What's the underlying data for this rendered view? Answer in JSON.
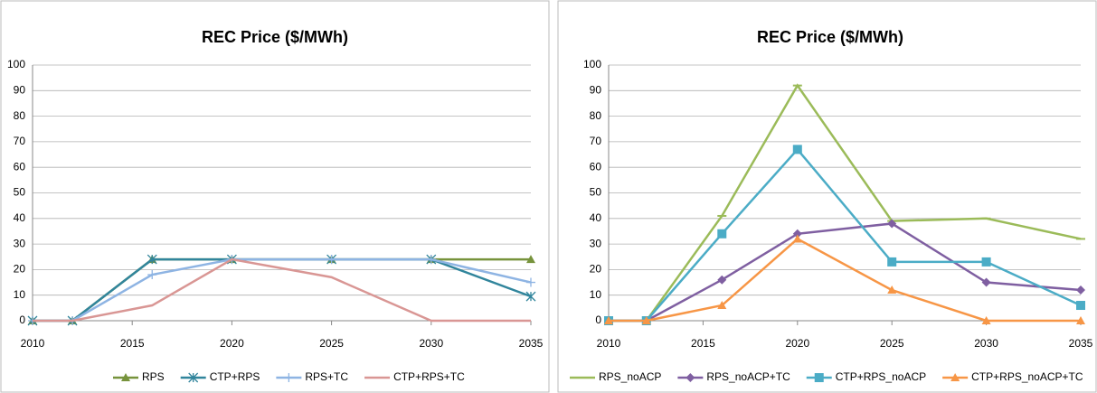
{
  "chart_data": [
    {
      "type": "line",
      "title": "REC Price ($/MWh)",
      "x": [
        2010,
        2012,
        2016,
        2020,
        2025,
        2030,
        2035
      ],
      "xlim": [
        2010,
        2035
      ],
      "xticks": [
        2010,
        2015,
        2020,
        2025,
        2030,
        2035
      ],
      "ylim": [
        0,
        100
      ],
      "yticks": [
        0,
        10,
        20,
        30,
        40,
        50,
        60,
        70,
        80,
        90,
        100
      ],
      "grid": true,
      "legend": "bottom",
      "series": [
        {
          "name": "RPS",
          "color": "#77933c",
          "marker": "triangle",
          "values": [
            0,
            0,
            24,
            24,
            24,
            24,
            24
          ]
        },
        {
          "name": "CTP+RPS",
          "color": "#31859c",
          "marker": "star",
          "values": [
            0,
            0,
            24,
            24,
            24,
            24,
            9.5
          ]
        },
        {
          "name": "RPS+TC",
          "color": "#8eb4e3",
          "marker": "plus",
          "values": [
            0,
            0,
            18,
            24,
            24,
            24,
            15
          ]
        },
        {
          "name": "CTP+RPS+TC",
          "color": "#d99694",
          "marker": "none",
          "values": [
            0,
            0,
            6,
            24,
            17,
            0,
            0
          ]
        }
      ]
    },
    {
      "type": "line",
      "title": "REC Price ($/MWh)",
      "x": [
        2010,
        2012,
        2016,
        2020,
        2025,
        2030,
        2035
      ],
      "xlim": [
        2010,
        2035
      ],
      "xticks": [
        2010,
        2015,
        2020,
        2025,
        2030,
        2035
      ],
      "ylim": [
        0,
        100
      ],
      "yticks": [
        0,
        10,
        20,
        30,
        40,
        50,
        60,
        70,
        80,
        90,
        100
      ],
      "grid": true,
      "legend": "bottom",
      "series": [
        {
          "name": "RPS_noACP",
          "color": "#9bbb59",
          "marker": "dash",
          "values": [
            0,
            0,
            41,
            92,
            39,
            40,
            32
          ]
        },
        {
          "name": "RPS_noACP+TC",
          "color": "#7f5fa1",
          "marker": "diamond",
          "values": [
            0,
            0,
            16,
            34,
            38,
            15,
            12
          ]
        },
        {
          "name": "CTP+RPS_noACP",
          "color": "#4bacc6",
          "marker": "square",
          "values": [
            0,
            0,
            34,
            67,
            23,
            23,
            6
          ]
        },
        {
          "name": "CTP+RPS_noACP+TC",
          "color": "#f79646",
          "marker": "triangle",
          "values": [
            0,
            0,
            6,
            32,
            12,
            0,
            0
          ]
        }
      ]
    }
  ]
}
